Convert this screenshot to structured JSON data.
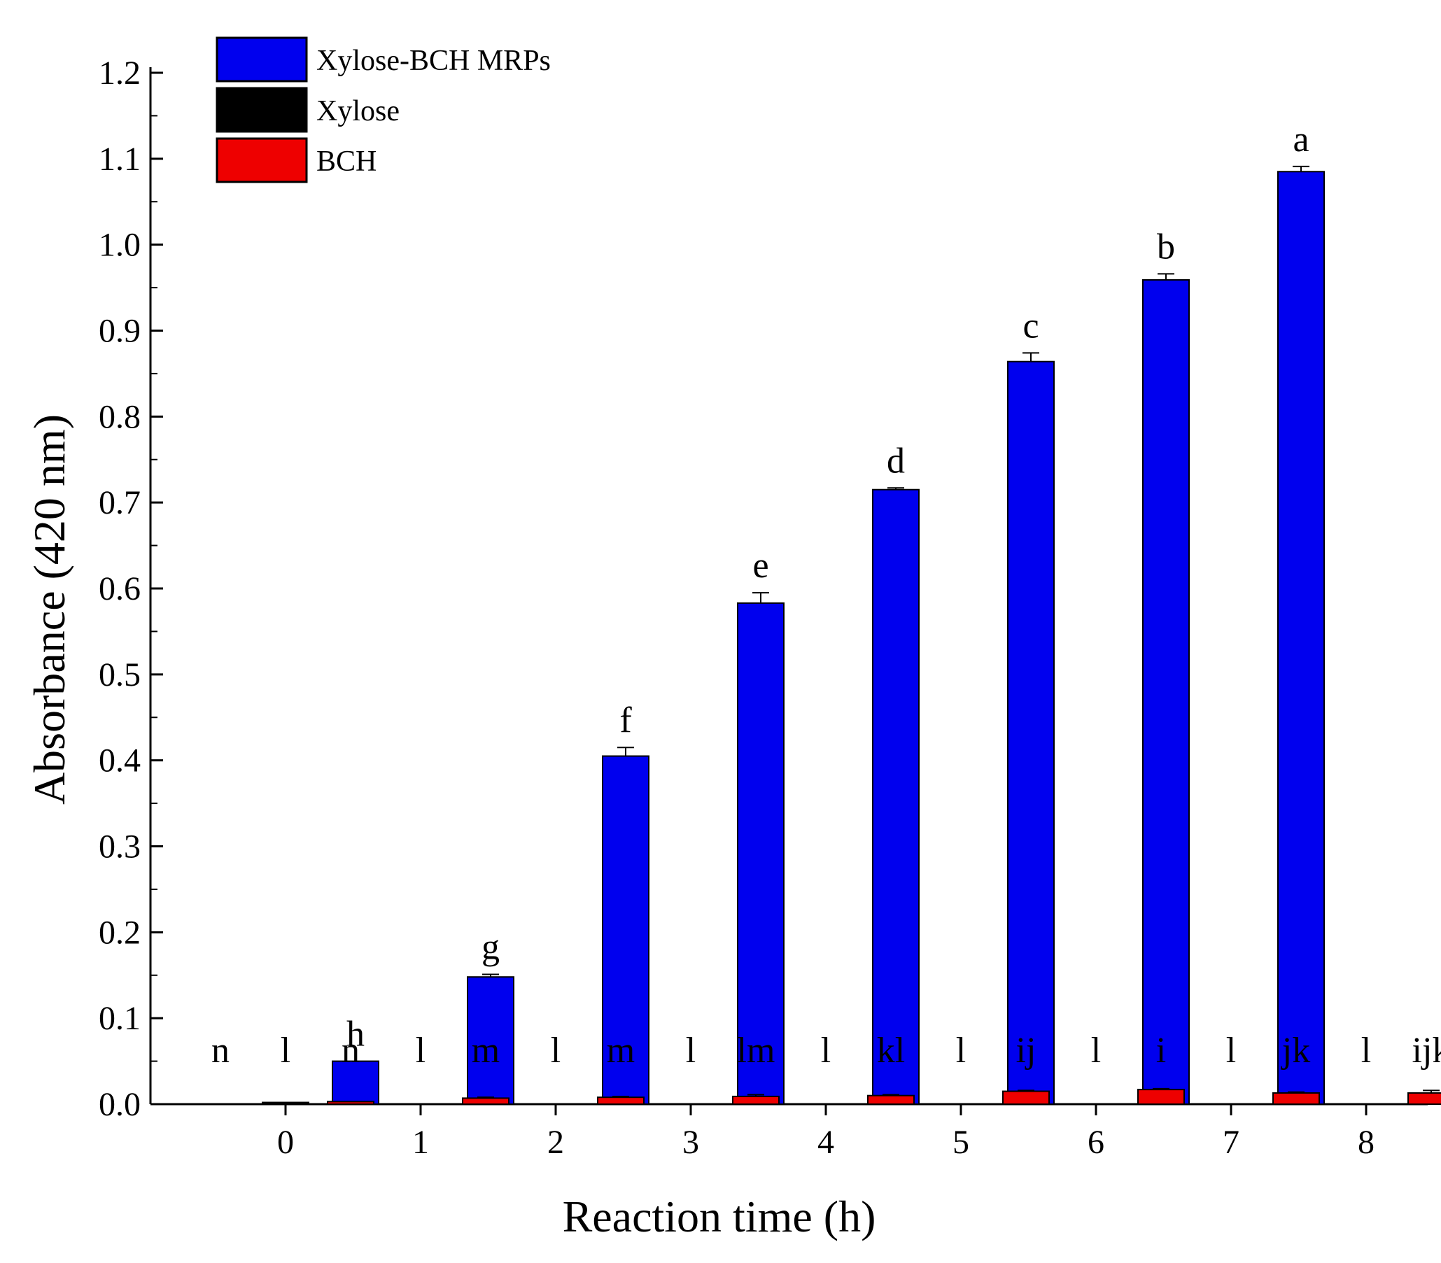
{
  "chart_data": {
    "type": "bar",
    "title": "",
    "xlabel": "Reaction time (h)",
    "ylabel": "Absorbance (420 nm)",
    "categories": [
      "0",
      "1",
      "2",
      "3",
      "4",
      "5",
      "6",
      "7",
      "8"
    ],
    "ylim": [
      0,
      1.2
    ],
    "yticks": [
      "0.0",
      "0.1",
      "0.2",
      "0.3",
      "0.4",
      "0.5",
      "0.6",
      "0.7",
      "0.8",
      "0.9",
      "1.0",
      "1.1",
      "1.2"
    ],
    "legend_position": "top-left",
    "series": [
      {
        "name": "Xylose-BCH MRPs",
        "color": "#0000ee",
        "values": [
          0.0,
          0.05,
          0.148,
          0.405,
          0.583,
          0.715,
          0.864,
          0.959,
          1.085
        ],
        "errors": [
          0.0,
          0.0,
          0.003,
          0.01,
          0.012,
          0.002,
          0.01,
          0.007,
          0.006
        ],
        "labels": [
          "n",
          "h",
          "g",
          "f",
          "e",
          "d",
          "c",
          "b",
          "a"
        ]
      },
      {
        "name": "Xylose",
        "color": "#000000",
        "values": [
          0.002,
          0.0,
          0.0,
          0.0,
          0.0,
          0.0,
          0.0,
          0.0,
          0.0
        ],
        "errors": [
          0.0,
          0.0,
          0.0,
          0.0,
          0.0,
          0.0,
          0.0,
          0.0,
          0.0
        ],
        "labels": [
          "l",
          "l",
          "l",
          "l",
          "l",
          "l",
          "l",
          "l",
          "l"
        ]
      },
      {
        "name": "BCH",
        "color": "#ee0000",
        "values": [
          0.003,
          0.007,
          0.008,
          0.009,
          0.01,
          0.015,
          0.017,
          0.013,
          0.013
        ],
        "errors": [
          0.0,
          0.001,
          0.001,
          0.002,
          0.001,
          0.001,
          0.001,
          0.001,
          0.003
        ],
        "labels": [
          "n",
          "m",
          "m",
          "lm",
          "kl",
          "ij",
          "i",
          "jk",
          "ijk"
        ]
      }
    ]
  }
}
